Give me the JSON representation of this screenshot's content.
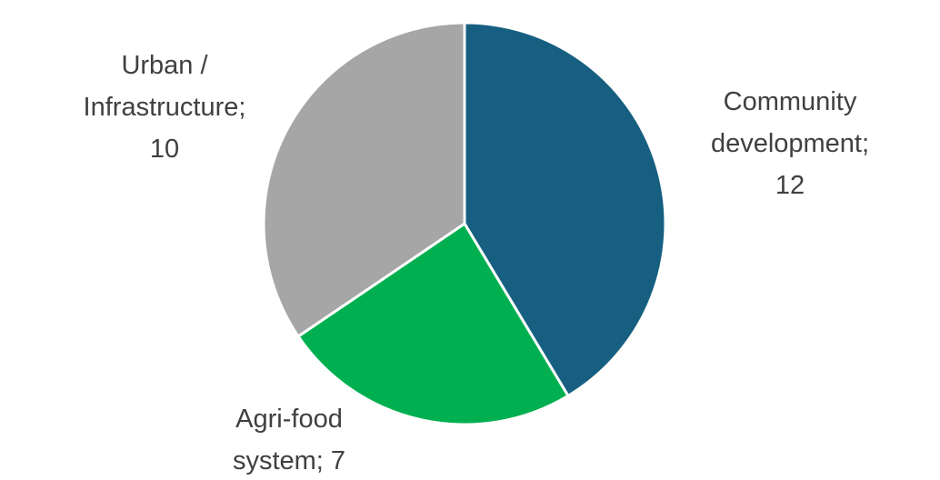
{
  "chart_data": {
    "type": "pie",
    "title": "",
    "start_angle_deg": 0,
    "direction": "clockwise",
    "series": [
      {
        "values": [
          12,
          7,
          10
        ],
        "categories": [
          "Community development",
          "Agri-food system",
          "Urban / Infrastructure"
        ],
        "colors": [
          "#175F81",
          "#00B050",
          "#A6A6A6"
        ]
      }
    ],
    "data_labels": [
      {
        "lines": [
          "Community",
          "development;",
          "12"
        ]
      },
      {
        "lines": [
          "Agri-food",
          "system; 7"
        ]
      },
      {
        "lines": [
          "Urban /",
          "Infrastructure;",
          "10"
        ]
      }
    ],
    "legend": "none"
  }
}
